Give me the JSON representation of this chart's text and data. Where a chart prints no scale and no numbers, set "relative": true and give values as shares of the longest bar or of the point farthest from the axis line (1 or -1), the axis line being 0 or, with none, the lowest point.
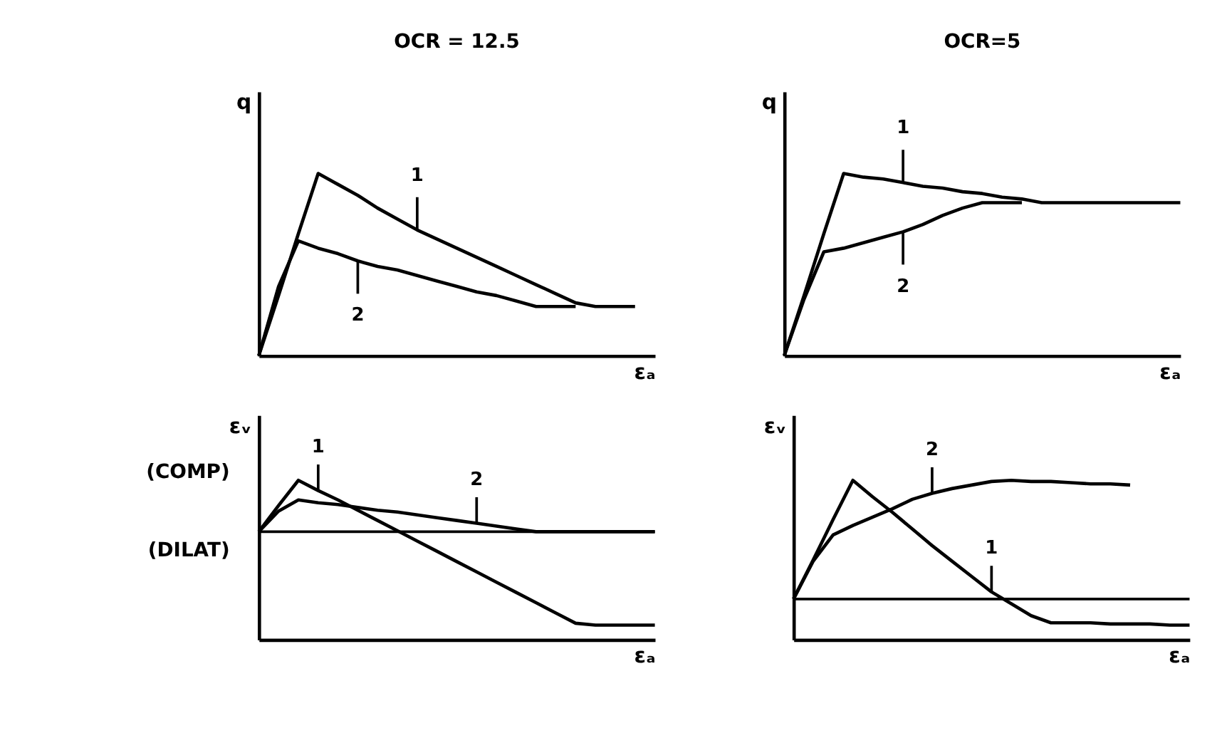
{
  "chart_data": [
    {
      "type": "line",
      "relative": true,
      "title": "OCR = 12.5",
      "xlabel": "εₐ",
      "ylabel": "q",
      "categories": [
        null,
        null,
        null,
        null,
        null,
        null,
        null,
        null,
        null,
        null,
        null,
        null,
        null,
        null,
        null,
        null,
        null,
        null,
        null,
        null,
        null
      ],
      "series": [
        {
          "name": "1",
          "color": "#000000",
          "values": [
            0,
            0.33,
            0.67,
            1,
            0.94,
            0.88,
            0.81,
            0.75,
            0.69,
            0.64,
            0.59,
            0.54,
            0.49,
            0.44,
            0.39,
            0.34,
            0.29,
            0.27,
            0.27,
            0.27,
            null
          ]
        },
        {
          "name": "2",
          "color": "#000000",
          "values": [
            0,
            0.38,
            0.63,
            0.59,
            0.56,
            0.52,
            0.49,
            0.47,
            0.44,
            0.41,
            0.38,
            0.35,
            0.33,
            0.3,
            0.27,
            0.27,
            0.27,
            null,
            null,
            null,
            null
          ]
        }
      ]
    },
    {
      "type": "line",
      "relative": true,
      "title": "OCR=5",
      "xlabel": "εₐ",
      "ylabel": "q",
      "categories": [
        null,
        null,
        null,
        null,
        null,
        null,
        null,
        null,
        null,
        null,
        null,
        null,
        null,
        null,
        null,
        null,
        null,
        null,
        null,
        null,
        null
      ],
      "series": [
        {
          "name": "1",
          "color": "#000000",
          "values": [
            0,
            0.33,
            0.67,
            1,
            0.98,
            0.97,
            0.95,
            0.93,
            0.92,
            0.9,
            0.89,
            0.87,
            0.86,
            0.84,
            0.84,
            0.84,
            0.84,
            0.84,
            0.84,
            0.84,
            0.84
          ]
        },
        {
          "name": "2",
          "color": "#000000",
          "values": [
            0,
            0.31,
            0.57,
            0.59,
            0.62,
            0.65,
            0.68,
            0.72,
            0.77,
            0.81,
            0.84,
            0.84,
            0.84,
            null,
            null,
            null,
            null,
            null,
            null,
            null,
            null
          ]
        }
      ]
    },
    {
      "type": "line",
      "relative": true,
      "xlabel": "εₐ",
      "ylabel": "εᵥ",
      "annotations": [
        "(COMP)",
        "(DILAT)"
      ],
      "categories": [
        null,
        null,
        null,
        null,
        null,
        null,
        null,
        null,
        null,
        null,
        null,
        null,
        null,
        null,
        null,
        null,
        null,
        null,
        null,
        null,
        null
      ],
      "series": [
        {
          "name": "1",
          "color": "#000000",
          "values": [
            0,
            0.28,
            0.55,
            0.44,
            0.34,
            0.23,
            0.12,
            0.01,
            -0.1,
            -0.21,
            -0.32,
            -0.43,
            -0.54,
            -0.65,
            -0.76,
            -0.87,
            -0.98,
            -1,
            -1,
            -1,
            -1
          ]
        },
        {
          "name": "2",
          "color": "#000000",
          "values": [
            0,
            0.22,
            0.34,
            0.31,
            0.29,
            0.26,
            0.23,
            0.21,
            0.18,
            0.15,
            0.12,
            0.09,
            0.06,
            0.03,
            0,
            0,
            0,
            0,
            0,
            0,
            0
          ]
        }
      ]
    },
    {
      "type": "line",
      "relative": true,
      "xlabel": "εₐ",
      "ylabel": "εᵥ",
      "categories": [
        null,
        null,
        null,
        null,
        null,
        null,
        null,
        null,
        null,
        null,
        null,
        null,
        null,
        null,
        null,
        null,
        null,
        null,
        null,
        null,
        null
      ],
      "series": [
        {
          "name": "1",
          "color": "#000000",
          "values": [
            0,
            0.33,
            0.67,
            1,
            0.86,
            0.73,
            0.59,
            0.45,
            0.32,
            0.19,
            0.06,
            -0.04,
            -0.14,
            -0.2,
            -0.2,
            -0.2,
            -0.21,
            -0.21,
            -0.21,
            -0.22,
            -0.22
          ]
        },
        {
          "name": "2",
          "color": "#000000",
          "values": [
            0,
            0.32,
            0.54,
            0.62,
            0.69,
            0.76,
            0.84,
            0.89,
            0.93,
            0.96,
            0.99,
            1.0,
            0.99,
            0.99,
            0.98,
            0.97,
            0.97,
            0.96,
            null,
            null,
            null
          ]
        }
      ]
    }
  ]
}
